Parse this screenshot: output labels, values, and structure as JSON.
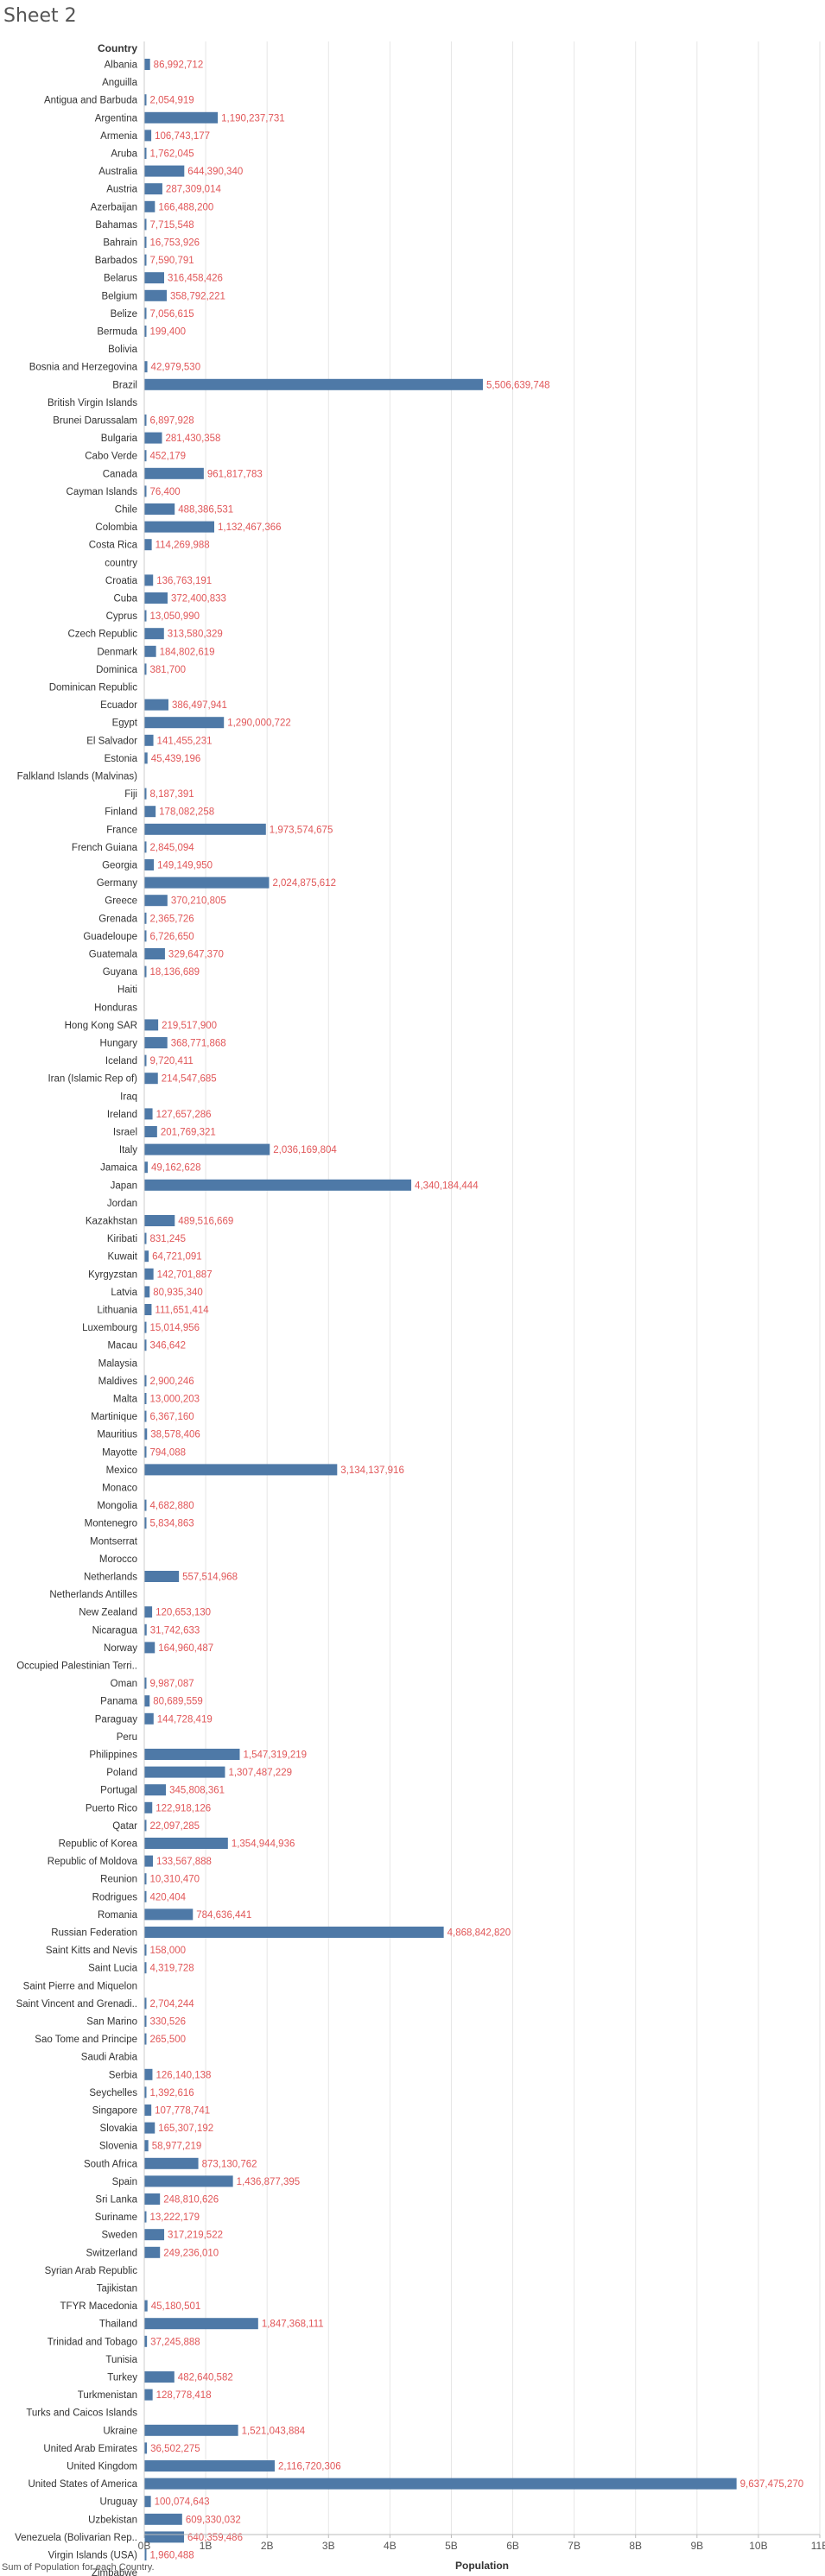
{
  "sheet": {
    "title": "Sheet 2",
    "caption": "Sum of Population for each Country."
  },
  "colors": {
    "bar": "#4e79a7",
    "label": "#e15759",
    "text": "#333333",
    "grid": "#e6e6e6"
  },
  "chart_data": {
    "type": "bar",
    "orientation": "horizontal",
    "row_header": "Country",
    "xlabel": "Population",
    "xlim": [
      0,
      11000000000
    ],
    "x_ticks": [
      {
        "value": 0,
        "label": "0B"
      },
      {
        "value": 1000000000,
        "label": "1B"
      },
      {
        "value": 2000000000,
        "label": "2B"
      },
      {
        "value": 3000000000,
        "label": "3B"
      },
      {
        "value": 4000000000,
        "label": "4B"
      },
      {
        "value": 5000000000,
        "label": "5B"
      },
      {
        "value": 6000000000,
        "label": "6B"
      },
      {
        "value": 7000000000,
        "label": "7B"
      },
      {
        "value": 8000000000,
        "label": "8B"
      },
      {
        "value": 9000000000,
        "label": "9B"
      },
      {
        "value": 10000000000,
        "label": "10B"
      },
      {
        "value": 11000000000,
        "label": "11B"
      }
    ],
    "grid": true,
    "rows": [
      {
        "category": "Albania",
        "value": 86992712,
        "label": "86,992,712"
      },
      {
        "category": "Anguilla",
        "value": null,
        "label": ""
      },
      {
        "category": "Antigua and Barbuda",
        "value": 2054919,
        "label": "2,054,919"
      },
      {
        "category": "Argentina",
        "value": 1190237731,
        "label": "1,190,237,731"
      },
      {
        "category": "Armenia",
        "value": 106743177,
        "label": "106,743,177"
      },
      {
        "category": "Aruba",
        "value": 1762045,
        "label": "1,762,045"
      },
      {
        "category": "Australia",
        "value": 644390340,
        "label": "644,390,340"
      },
      {
        "category": "Austria",
        "value": 287309014,
        "label": "287,309,014"
      },
      {
        "category": "Azerbaijan",
        "value": 166488200,
        "label": "166,488,200"
      },
      {
        "category": "Bahamas",
        "value": 7715548,
        "label": "7,715,548"
      },
      {
        "category": "Bahrain",
        "value": 16753926,
        "label": "16,753,926"
      },
      {
        "category": "Barbados",
        "value": 7590791,
        "label": "7,590,791"
      },
      {
        "category": "Belarus",
        "value": 316458426,
        "label": "316,458,426"
      },
      {
        "category": "Belgium",
        "value": 358792221,
        "label": "358,792,221"
      },
      {
        "category": "Belize",
        "value": 7056615,
        "label": "7,056,615"
      },
      {
        "category": "Bermuda",
        "value": 199400,
        "label": "199,400"
      },
      {
        "category": "Bolivia",
        "value": null,
        "label": ""
      },
      {
        "category": "Bosnia and Herzegovina",
        "value": 42979530,
        "label": "42,979,530"
      },
      {
        "category": "Brazil",
        "value": 5506639748,
        "label": "5,506,639,748"
      },
      {
        "category": "British Virgin Islands",
        "value": null,
        "label": ""
      },
      {
        "category": "Brunei Darussalam",
        "value": 6897928,
        "label": "6,897,928"
      },
      {
        "category": "Bulgaria",
        "value": 281430358,
        "label": "281,430,358"
      },
      {
        "category": "Cabo Verde",
        "value": 452179,
        "label": "452,179"
      },
      {
        "category": "Canada",
        "value": 961817783,
        "label": "961,817,783"
      },
      {
        "category": "Cayman Islands",
        "value": 76400,
        "label": "76,400"
      },
      {
        "category": "Chile",
        "value": 488386531,
        "label": "488,386,531"
      },
      {
        "category": "Colombia",
        "value": 1132467366,
        "label": "1,132,467,366"
      },
      {
        "category": "Costa Rica",
        "value": 114269988,
        "label": "114,269,988"
      },
      {
        "category": "country",
        "value": null,
        "label": ""
      },
      {
        "category": "Croatia",
        "value": 136763191,
        "label": "136,763,191"
      },
      {
        "category": "Cuba",
        "value": 372400833,
        "label": "372,400,833"
      },
      {
        "category": "Cyprus",
        "value": 13050990,
        "label": "13,050,990"
      },
      {
        "category": "Czech Republic",
        "value": 313580329,
        "label": "313,580,329"
      },
      {
        "category": "Denmark",
        "value": 184802619,
        "label": "184,802,619"
      },
      {
        "category": "Dominica",
        "value": 381700,
        "label": "381,700"
      },
      {
        "category": "Dominican Republic",
        "value": null,
        "label": ""
      },
      {
        "category": "Ecuador",
        "value": 386497941,
        "label": "386,497,941"
      },
      {
        "category": "Egypt",
        "value": 1290000722,
        "label": "1,290,000,722"
      },
      {
        "category": "El Salvador",
        "value": 141455231,
        "label": "141,455,231"
      },
      {
        "category": "Estonia",
        "value": 45439196,
        "label": "45,439,196"
      },
      {
        "category": "Falkland Islands (Malvinas)",
        "value": null,
        "label": ""
      },
      {
        "category": "Fiji",
        "value": 8187391,
        "label": "8,187,391"
      },
      {
        "category": "Finland",
        "value": 178082258,
        "label": "178,082,258"
      },
      {
        "category": "France",
        "value": 1973574675,
        "label": "1,973,574,675"
      },
      {
        "category": "French Guiana",
        "value": 2845094,
        "label": "2,845,094"
      },
      {
        "category": "Georgia",
        "value": 149149950,
        "label": "149,149,950"
      },
      {
        "category": "Germany",
        "value": 2024875612,
        "label": "2,024,875,612"
      },
      {
        "category": "Greece",
        "value": 370210805,
        "label": "370,210,805"
      },
      {
        "category": "Grenada",
        "value": 2365726,
        "label": "2,365,726"
      },
      {
        "category": "Guadeloupe",
        "value": 6726650,
        "label": "6,726,650"
      },
      {
        "category": "Guatemala",
        "value": 329647370,
        "label": "329,647,370"
      },
      {
        "category": "Guyana",
        "value": 18136689,
        "label": "18,136,689"
      },
      {
        "category": "Haiti",
        "value": null,
        "label": ""
      },
      {
        "category": "Honduras",
        "value": null,
        "label": ""
      },
      {
        "category": "Hong Kong SAR",
        "value": 219517900,
        "label": "219,517,900"
      },
      {
        "category": "Hungary",
        "value": 368771868,
        "label": "368,771,868"
      },
      {
        "category": "Iceland",
        "value": 9720411,
        "label": "9,720,411"
      },
      {
        "category": "Iran (Islamic Rep of)",
        "value": 214547685,
        "label": "214,547,685"
      },
      {
        "category": "Iraq",
        "value": null,
        "label": ""
      },
      {
        "category": "Ireland",
        "value": 127657286,
        "label": "127,657,286"
      },
      {
        "category": "Israel",
        "value": 201769321,
        "label": "201,769,321"
      },
      {
        "category": "Italy",
        "value": 2036169804,
        "label": "2,036,169,804"
      },
      {
        "category": "Jamaica",
        "value": 49162628,
        "label": "49,162,628"
      },
      {
        "category": "Japan",
        "value": 4340184444,
        "label": "4,340,184,444"
      },
      {
        "category": "Jordan",
        "value": null,
        "label": ""
      },
      {
        "category": "Kazakhstan",
        "value": 489516669,
        "label": "489,516,669"
      },
      {
        "category": "Kiribati",
        "value": 831245,
        "label": "831,245"
      },
      {
        "category": "Kuwait",
        "value": 64721091,
        "label": "64,721,091"
      },
      {
        "category": "Kyrgyzstan",
        "value": 142701887,
        "label": "142,701,887"
      },
      {
        "category": "Latvia",
        "value": 80935340,
        "label": "80,935,340"
      },
      {
        "category": "Lithuania",
        "value": 111651414,
        "label": "111,651,414"
      },
      {
        "category": "Luxembourg",
        "value": 15014956,
        "label": "15,014,956"
      },
      {
        "category": "Macau",
        "value": 346642,
        "label": "346,642"
      },
      {
        "category": "Malaysia",
        "value": null,
        "label": ""
      },
      {
        "category": "Maldives",
        "value": 2900246,
        "label": "2,900,246"
      },
      {
        "category": "Malta",
        "value": 13000203,
        "label": "13,000,203"
      },
      {
        "category": "Martinique",
        "value": 6367160,
        "label": "6,367,160"
      },
      {
        "category": "Mauritius",
        "value": 38578406,
        "label": "38,578,406"
      },
      {
        "category": "Mayotte",
        "value": 794088,
        "label": "794,088"
      },
      {
        "category": "Mexico",
        "value": 3134137916,
        "label": "3,134,137,916"
      },
      {
        "category": "Monaco",
        "value": null,
        "label": ""
      },
      {
        "category": "Mongolia",
        "value": 4682880,
        "label": "4,682,880"
      },
      {
        "category": "Montenegro",
        "value": 5834863,
        "label": "5,834,863"
      },
      {
        "category": "Montserrat",
        "value": null,
        "label": ""
      },
      {
        "category": "Morocco",
        "value": null,
        "label": ""
      },
      {
        "category": "Netherlands",
        "value": 557514968,
        "label": "557,514,968"
      },
      {
        "category": "Netherlands Antilles",
        "value": null,
        "label": ""
      },
      {
        "category": "New Zealand",
        "value": 120653130,
        "label": "120,653,130"
      },
      {
        "category": "Nicaragua",
        "value": 31742633,
        "label": "31,742,633"
      },
      {
        "category": "Norway",
        "value": 164960487,
        "label": "164,960,487"
      },
      {
        "category": "Occupied Palestinian Terri..",
        "value": null,
        "label": ""
      },
      {
        "category": "Oman",
        "value": 9987087,
        "label": "9,987,087"
      },
      {
        "category": "Panama",
        "value": 80689559,
        "label": "80,689,559"
      },
      {
        "category": "Paraguay",
        "value": 144728419,
        "label": "144,728,419"
      },
      {
        "category": "Peru",
        "value": null,
        "label": ""
      },
      {
        "category": "Philippines",
        "value": 1547319219,
        "label": "1,547,319,219"
      },
      {
        "category": "Poland",
        "value": 1307487229,
        "label": "1,307,487,229"
      },
      {
        "category": "Portugal",
        "value": 345808361,
        "label": "345,808,361"
      },
      {
        "category": "Puerto Rico",
        "value": 122918126,
        "label": "122,918,126"
      },
      {
        "category": "Qatar",
        "value": 22097285,
        "label": "22,097,285"
      },
      {
        "category": "Republic of Korea",
        "value": 1354944936,
        "label": "1,354,944,936"
      },
      {
        "category": "Republic of Moldova",
        "value": 133567888,
        "label": "133,567,888"
      },
      {
        "category": "Reunion",
        "value": 10310470,
        "label": "10,310,470"
      },
      {
        "category": "Rodrigues",
        "value": 420404,
        "label": "420,404"
      },
      {
        "category": "Romania",
        "value": 784636441,
        "label": "784,636,441"
      },
      {
        "category": "Russian Federation",
        "value": 4868842820,
        "label": "4,868,842,820"
      },
      {
        "category": "Saint Kitts and Nevis",
        "value": 158000,
        "label": "158,000"
      },
      {
        "category": "Saint Lucia",
        "value": 4319728,
        "label": "4,319,728"
      },
      {
        "category": "Saint Pierre and Miquelon",
        "value": null,
        "label": ""
      },
      {
        "category": "Saint Vincent and Grenadi..",
        "value": 2704244,
        "label": "2,704,244"
      },
      {
        "category": "San Marino",
        "value": 330526,
        "label": "330,526"
      },
      {
        "category": "Sao Tome and Principe",
        "value": 265500,
        "label": "265,500"
      },
      {
        "category": "Saudi Arabia",
        "value": null,
        "label": ""
      },
      {
        "category": "Serbia",
        "value": 126140138,
        "label": "126,140,138"
      },
      {
        "category": "Seychelles",
        "value": 1392616,
        "label": "1,392,616"
      },
      {
        "category": "Singapore",
        "value": 107778741,
        "label": "107,778,741"
      },
      {
        "category": "Slovakia",
        "value": 165307192,
        "label": "165,307,192"
      },
      {
        "category": "Slovenia",
        "value": 58977219,
        "label": "58,977,219"
      },
      {
        "category": "South Africa",
        "value": 873130762,
        "label": "873,130,762"
      },
      {
        "category": "Spain",
        "value": 1436877395,
        "label": "1,436,877,395"
      },
      {
        "category": "Sri Lanka",
        "value": 248810626,
        "label": "248,810,626"
      },
      {
        "category": "Suriname",
        "value": 13222179,
        "label": "13,222,179"
      },
      {
        "category": "Sweden",
        "value": 317219522,
        "label": "317,219,522"
      },
      {
        "category": "Switzerland",
        "value": 249236010,
        "label": "249,236,010"
      },
      {
        "category": "Syrian Arab Republic",
        "value": null,
        "label": ""
      },
      {
        "category": "Tajikistan",
        "value": null,
        "label": ""
      },
      {
        "category": "TFYR Macedonia",
        "value": 45180501,
        "label": "45,180,501"
      },
      {
        "category": "Thailand",
        "value": 1847368111,
        "label": "1,847,368,111"
      },
      {
        "category": "Trinidad and Tobago",
        "value": 37245888,
        "label": "37,245,888"
      },
      {
        "category": "Tunisia",
        "value": null,
        "label": ""
      },
      {
        "category": "Turkey",
        "value": 482640582,
        "label": "482,640,582"
      },
      {
        "category": "Turkmenistan",
        "value": 128778418,
        "label": "128,778,418"
      },
      {
        "category": "Turks and Caicos Islands",
        "value": null,
        "label": ""
      },
      {
        "category": "Ukraine",
        "value": 1521043884,
        "label": "1,521,043,884"
      },
      {
        "category": "United Arab Emirates",
        "value": 36502275,
        "label": "36,502,275"
      },
      {
        "category": "United Kingdom",
        "value": 2116720306,
        "label": "2,116,720,306"
      },
      {
        "category": "United States of America",
        "value": 9637475270,
        "label": "9,637,475,270"
      },
      {
        "category": "Uruguay",
        "value": 100074643,
        "label": "100,074,643"
      },
      {
        "category": "Uzbekistan",
        "value": 609330032,
        "label": "609,330,032"
      },
      {
        "category": "Venezuela (Bolivarian Rep..",
        "value": 640359486,
        "label": "640,359,486"
      },
      {
        "category": "Virgin Islands (USA)",
        "value": 1960488,
        "label": "1,960,488"
      },
      {
        "category": "Zimbabwe",
        "value": null,
        "label": ""
      }
    ]
  }
}
